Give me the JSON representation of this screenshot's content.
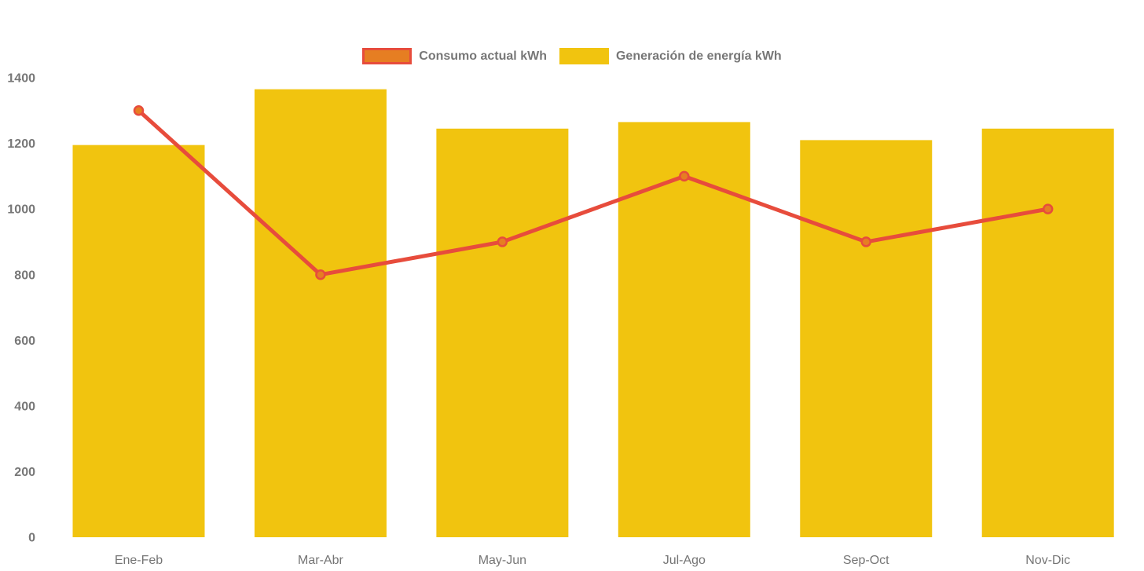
{
  "chart_data": {
    "type": "combo-bar-line",
    "title": "",
    "xlabel": "",
    "ylabel": "",
    "categories": [
      "Ene-Feb",
      "Mar-Abr",
      "May-Jun",
      "Jul-Ago",
      "Sep-Oct",
      "Nov-Dic"
    ],
    "series": [
      {
        "name": "Consumo actual kWh",
        "type": "line",
        "values": [
          1300,
          800,
          900,
          1100,
          900,
          1000
        ],
        "color": "#E74C3C",
        "marker_fill": "#E67E22"
      },
      {
        "name": "Generación de energía kWh",
        "type": "bar",
        "values": [
          1195,
          1365,
          1245,
          1265,
          1210,
          1245
        ],
        "color": "#F1C40F"
      }
    ],
    "yticks": [
      0,
      200,
      400,
      600,
      800,
      1000,
      1200,
      1400
    ],
    "ylim": [
      0,
      1400
    ],
    "grid": false,
    "legend_position": "top-center",
    "text_color": "#777777",
    "background": "#FFFFFF"
  }
}
